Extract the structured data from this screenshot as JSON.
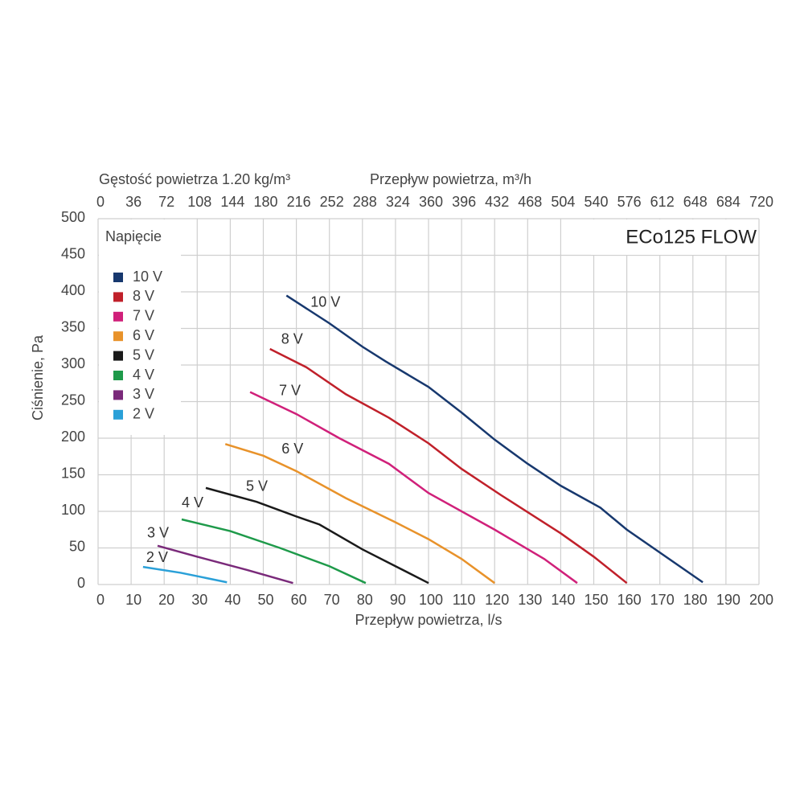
{
  "chart_data": {
    "type": "line",
    "title": "ECo125 FLOW",
    "density_label": "Gęstość powietrza 1.20 kg/m³",
    "x2label": "Przepływ powietrza, m³/h",
    "xlabel": "Przepływ powietrza, l/s",
    "ylabel": "Ciśnienie, Pa",
    "legend_title": "Napięcie",
    "grid": true,
    "xlim": [
      0,
      200
    ],
    "xticks": [
      0,
      10,
      20,
      30,
      40,
      50,
      60,
      70,
      80,
      90,
      100,
      110,
      120,
      130,
      140,
      150,
      160,
      170,
      180,
      190,
      200
    ],
    "x2lim": [
      0,
      720
    ],
    "x2ticks": [
      0,
      36,
      72,
      108,
      144,
      180,
      216,
      252,
      288,
      324,
      360,
      396,
      432,
      468,
      504,
      540,
      576,
      612,
      648,
      684,
      720
    ],
    "ylim": [
      0,
      500
    ],
    "yticks": [
      0,
      50,
      100,
      150,
      200,
      250,
      300,
      350,
      400,
      450,
      500
    ],
    "series": [
      {
        "name": "10 V",
        "color": "#17386e",
        "x": [
          57,
          70,
          80,
          87,
          100,
          110,
          120,
          130,
          140,
          152,
          160,
          183
        ],
        "values": [
          395,
          357,
          325,
          305,
          270,
          235,
          198,
          165,
          135,
          105,
          75,
          3
        ]
      },
      {
        "name": "8 V",
        "color": "#c0202a",
        "x": [
          52,
          63,
          75,
          88,
          100,
          110,
          122,
          140,
          150,
          160
        ],
        "values": [
          322,
          297,
          260,
          228,
          193,
          158,
          122,
          70,
          38,
          2
        ]
      },
      {
        "name": "7 V",
        "color": "#d0207a",
        "x": [
          46,
          60,
          73,
          88,
          100,
          120,
          135,
          145
        ],
        "values": [
          263,
          233,
          200,
          165,
          125,
          75,
          35,
          2
        ]
      },
      {
        "name": "6 V",
        "color": "#e8922a",
        "x": [
          38.5,
          50,
          60,
          75,
          90,
          100,
          110,
          120
        ],
        "values": [
          192,
          176,
          155,
          118,
          85,
          62,
          35,
          2
        ]
      },
      {
        "name": "5 V",
        "color": "#1a1a1a",
        "x": [
          32.6,
          48,
          60,
          67,
          80,
          90,
          100
        ],
        "values": [
          132,
          113,
          93,
          82,
          48,
          25,
          2
        ]
      },
      {
        "name": "4 V",
        "color": "#1e9a4a",
        "x": [
          25.3,
          40,
          55,
          70,
          81
        ],
        "values": [
          89,
          73,
          50,
          25,
          2
        ]
      },
      {
        "name": "3 V",
        "color": "#7a2a7a",
        "x": [
          18,
          30,
          45,
          59
        ],
        "values": [
          53,
          38,
          20,
          2
        ]
      },
      {
        "name": "2 V",
        "color": "#2aa0d8",
        "x": [
          13.6,
          25,
          39
        ],
        "values": [
          24,
          16,
          3
        ]
      }
    ]
  }
}
